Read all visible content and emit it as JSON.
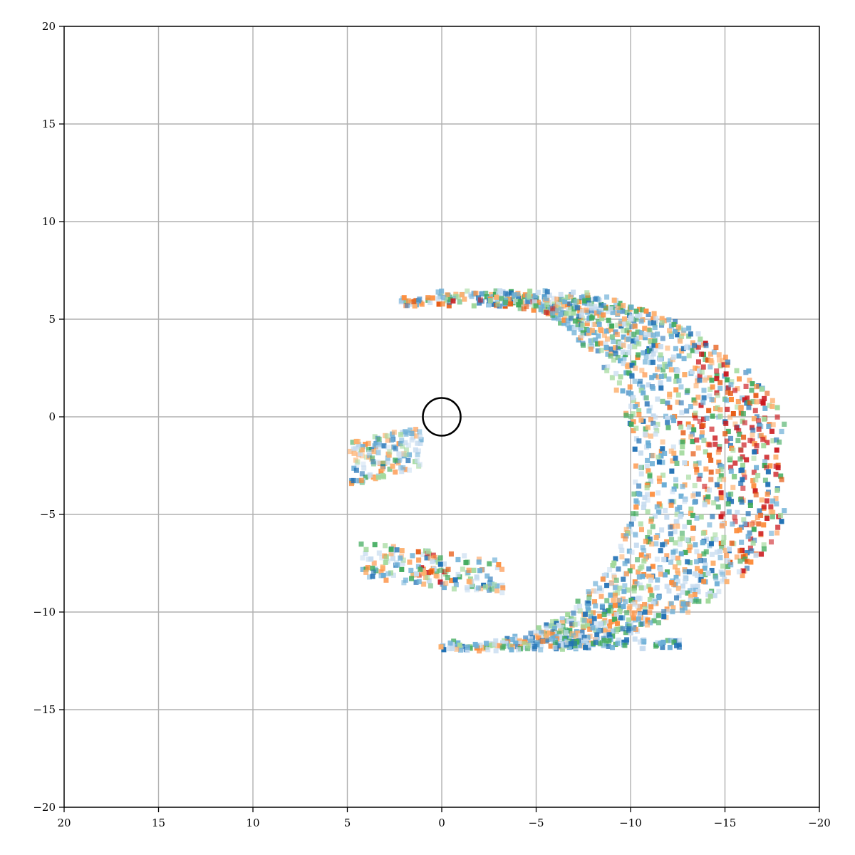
{
  "chart_data": {
    "type": "heatmap",
    "title": "",
    "xlabel": "",
    "ylabel": "",
    "xlim": [
      20,
      -20
    ],
    "ylim": [
      -20,
      20
    ],
    "x_inverted": true,
    "grid": true,
    "x_ticks": [
      20,
      15,
      10,
      5,
      0,
      -5,
      -10,
      -15,
      -20
    ],
    "y_ticks": [
      20,
      15,
      10,
      5,
      0,
      -5,
      -10,
      -15,
      -20
    ],
    "x_tick_labels": [
      "20",
      "15",
      "10",
      "5",
      "0",
      "−5",
      "−10",
      "−15",
      "−20"
    ],
    "y_tick_labels": [
      "20",
      "15",
      "10",
      "5",
      "0",
      "−5",
      "−10",
      "−15",
      "−20"
    ],
    "marker": {
      "shape": "circle",
      "center": [
        0,
        0
      ],
      "radius": 1.0,
      "color": "#000000"
    },
    "colors": [
      "#2171b5",
      "#6baed6",
      "#c6dbef",
      "#41ab5d",
      "#a1d99b",
      "#fdae6b",
      "#fd8d3c",
      "#e6550d",
      "#cb181d"
    ],
    "regions": [
      {
        "name": "main-arc",
        "description": "crescent of cells sweeping from the top (x≈2..-10, y≈6.4) down the right side to the bottom (x≈-6..-12, y≈-11.6)",
        "theta_range_deg": [
          12,
          190
        ],
        "x_range": [
          2.3,
          -18
        ],
        "y_range": [
          -11.7,
          6.5
        ],
        "red_concentration": "upper-right (x≈-12..-17, y≈-4..4)"
      },
      {
        "name": "left-cluster",
        "x_range": [
          5,
          1
        ],
        "y_range": [
          -3.5,
          0.5
        ]
      },
      {
        "name": "lower-cluster",
        "x_range": [
          4.5,
          -3.5
        ],
        "y_range": [
          -9,
          -5.8
        ]
      }
    ],
    "cell_size": 0.25
  }
}
